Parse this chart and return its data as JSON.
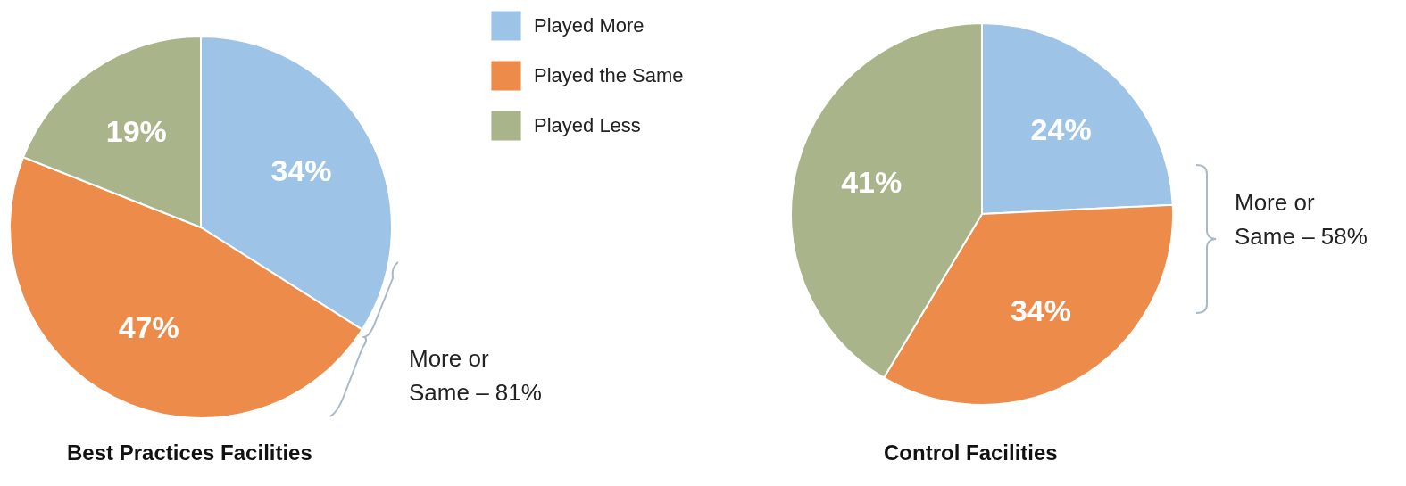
{
  "chart_data": [
    {
      "type": "pie",
      "title": "Best Practices Facilities",
      "categories": [
        "Played More",
        "Played the Same",
        "Played Less"
      ],
      "values": [
        34,
        47,
        19
      ],
      "colors": [
        "#9dc3e6",
        "#ed8b4b",
        "#a9b48b"
      ],
      "value_labels": [
        "34%",
        "47%",
        "19%"
      ],
      "annotations": [
        "More or\nSame – 81%"
      ],
      "legend": "right"
    },
    {
      "type": "pie",
      "title": "Control Facilities",
      "categories": [
        null,
        null,
        null
      ],
      "values": [
        24,
        34,
        41
      ],
      "colors": [
        "#9dc3e6",
        "#ed8b4b",
        "#a9b48b"
      ],
      "value_labels": [
        "24%",
        "34%",
        "41%"
      ],
      "annotations": [
        "More or\nSame – 58%"
      ]
    }
  ]
}
